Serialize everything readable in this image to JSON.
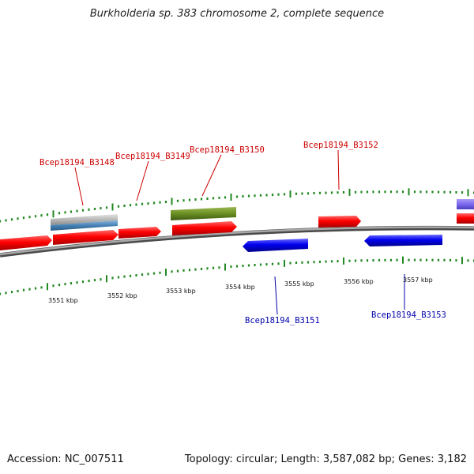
{
  "title": "Burkholderia sp. 383 chromosome 2, complete sequence",
  "footer": {
    "accession": "Accession: NC_007511",
    "summary": "Topology: circular; Length: 3,587,082 bp; Genes: 3,182"
  },
  "colors": {
    "forward_gene": "#ff0000",
    "reverse_gene": "#0000ee",
    "label_forward": "#cc0000",
    "label_reverse": "#0000aa",
    "ruler_ticks": "#228822",
    "backbone": "#808080",
    "feature_green": "#6b8e23",
    "feature_steelblue": "#4682b4",
    "feature_gray": "#b0b0b0",
    "feature_purple": "#7b68ee"
  },
  "ruler": {
    "tick_labels": [
      "3551 kbp",
      "3552 kbp",
      "3553 kbp",
      "3554 kbp",
      "3555 kbp",
      "3556 kbp",
      "3557 kbp"
    ]
  },
  "genes": {
    "labels": [
      "Bcep18194_B3148",
      "Bcep18194_B3149",
      "Bcep18194_B3150",
      "Bcep18194_B3151",
      "Bcep18194_B3152",
      "Bcep18194_B3153"
    ]
  }
}
